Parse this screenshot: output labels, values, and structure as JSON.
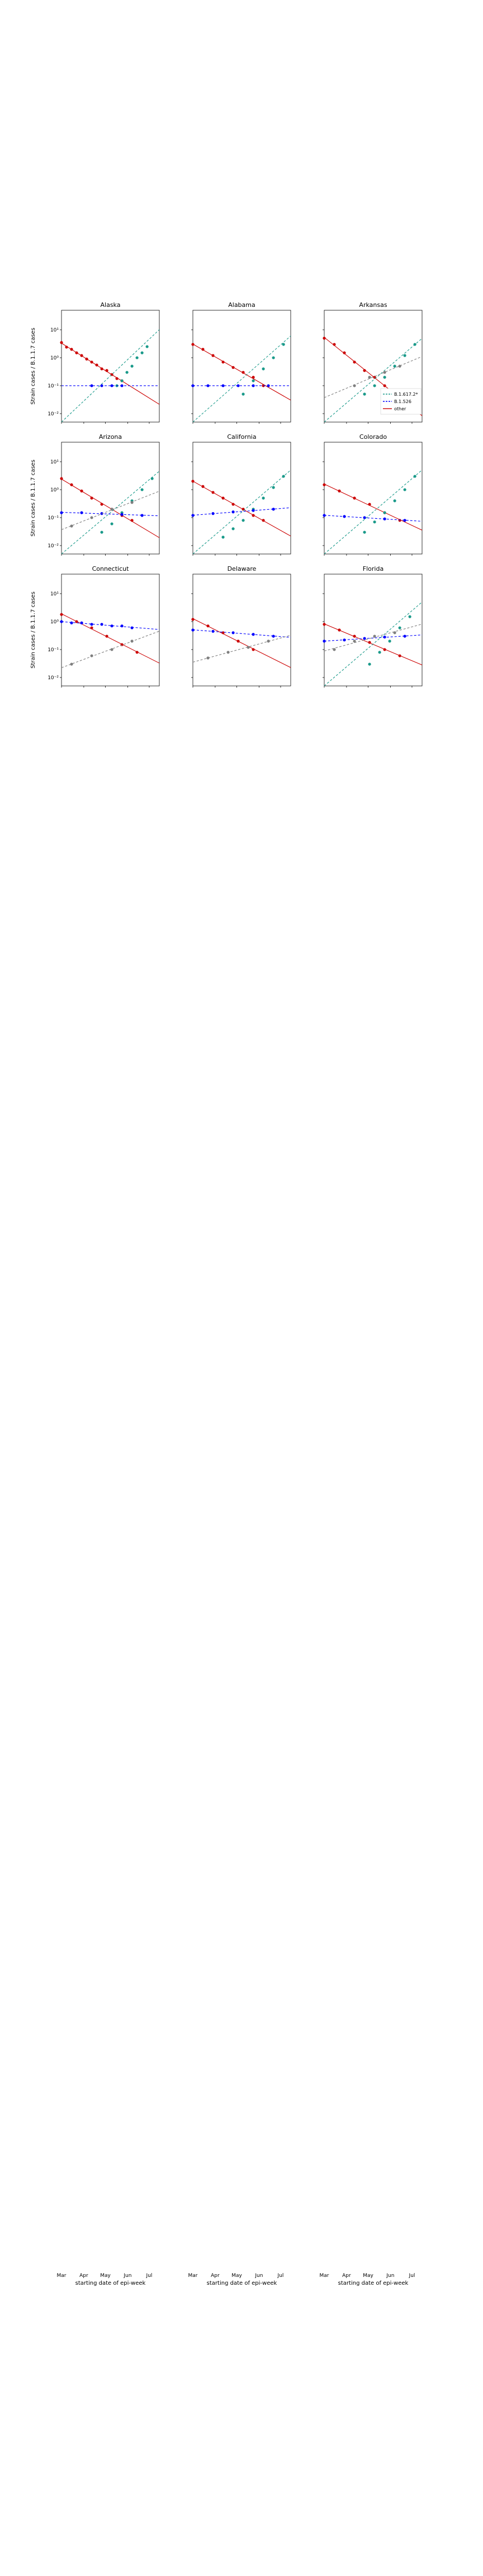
{
  "figure": {
    "ylabel": "Strain cases / B.1.1.7 cases",
    "xlabel": "starting date of epi-week",
    "x_tick_labels": [
      "Mar",
      "Apr",
      "May",
      "Jun",
      "Jul"
    ],
    "y_tick_labels": [
      "10¹",
      "10⁰",
      "10⁻¹",
      "10⁻²"
    ],
    "legend": {
      "location": "inside Arkansas panel, lower-right",
      "entries": [
        {
          "label": "B.1.617.2*",
          "color": "#1a9a8a",
          "style": "dashed"
        },
        {
          "label": "B.1.526",
          "color": "#0000ff",
          "style": "dashed"
        },
        {
          "label": "other",
          "color": "#cc0000",
          "style": "solid"
        }
      ]
    },
    "series_colors": {
      "B.1.617.2*": "#1a9a8a",
      "B.1.526": "#0000ff",
      "P.1": "#7f7f7f",
      "other": "#cc0000"
    }
  },
  "chart_data": [
    {
      "type": "scatter",
      "title": "Alaska",
      "log_y": true,
      "ylim": [
        0.005,
        50
      ],
      "grid": false,
      "x_range": [
        "2021-03-01",
        "2021-07-15"
      ],
      "series": [
        {
          "name": "other",
          "color": "#cc0000",
          "x": [
            "2021-03-01",
            "2021-03-08",
            "2021-03-15",
            "2021-03-22",
            "2021-03-29",
            "2021-04-05",
            "2021-04-12",
            "2021-04-19",
            "2021-04-26",
            "2021-05-03",
            "2021-05-10",
            "2021-05-17",
            "2021-05-24"
          ],
          "y": [
            3.5,
            2.4,
            2.0,
            1.5,
            1.2,
            0.9,
            0.7,
            0.55,
            0.4,
            0.35,
            0.25,
            0.18,
            0.15
          ]
        },
        {
          "name": "B.1.617.2*",
          "color": "#1a9a8a",
          "x": [
            "2021-05-17",
            "2021-05-24",
            "2021-05-31",
            "2021-06-07",
            "2021-06-14",
            "2021-06-21",
            "2021-06-28"
          ],
          "y": [
            0.1,
            0.15,
            0.3,
            0.5,
            1.0,
            1.5,
            2.5
          ]
        },
        {
          "name": "B.1.526",
          "color": "#0000ff",
          "x": [
            "2021-04-12",
            "2021-04-26",
            "2021-05-10",
            "2021-05-24"
          ],
          "y": [
            0.1,
            0.1,
            0.1,
            0.1
          ]
        }
      ]
    },
    {
      "type": "scatter",
      "title": "Alabama",
      "log_y": true,
      "ylim": [
        0.005,
        50
      ],
      "grid": false,
      "x_range": [
        "2021-03-01",
        "2021-07-15"
      ],
      "series": [
        {
          "name": "other",
          "color": "#cc0000",
          "x": [
            "2021-03-01",
            "2021-03-15",
            "2021-03-29",
            "2021-04-12",
            "2021-04-26",
            "2021-05-10",
            "2021-05-24",
            "2021-06-07"
          ],
          "y": [
            3.0,
            2.0,
            1.2,
            0.7,
            0.45,
            0.3,
            0.2,
            0.1
          ]
        },
        {
          "name": "B.1.617.2*",
          "color": "#1a9a8a",
          "x": [
            "2021-05-10",
            "2021-05-24",
            "2021-06-07",
            "2021-06-21",
            "2021-07-05"
          ],
          "y": [
            0.05,
            0.15,
            0.4,
            1.0,
            3.0
          ]
        },
        {
          "name": "B.1.526",
          "color": "#0000ff",
          "x": [
            "2021-03-01",
            "2021-03-22",
            "2021-04-12",
            "2021-05-03",
            "2021-05-24",
            "2021-06-14"
          ],
          "y": [
            0.1,
            0.1,
            0.1,
            0.1,
            0.1,
            0.1
          ]
        }
      ]
    },
    {
      "type": "scatter",
      "title": "Arkansas",
      "log_y": true,
      "ylim": [
        0.005,
        50
      ],
      "grid": false,
      "x_range": [
        "2021-03-01",
        "2021-07-15"
      ],
      "series": [
        {
          "name": "other",
          "color": "#cc0000",
          "x": [
            "2021-03-01",
            "2021-03-15",
            "2021-03-29",
            "2021-04-12",
            "2021-04-26",
            "2021-05-10",
            "2021-05-24"
          ],
          "y": [
            5.0,
            3.0,
            1.5,
            0.7,
            0.35,
            0.2,
            0.1
          ]
        },
        {
          "name": "B.1.617.2*",
          "color": "#1a9a8a",
          "x": [
            "2021-04-26",
            "2021-05-10",
            "2021-05-24",
            "2021-06-07",
            "2021-06-21",
            "2021-07-05"
          ],
          "y": [
            0.05,
            0.1,
            0.2,
            0.5,
            1.2,
            3.0
          ]
        },
        {
          "name": "P.1",
          "color": "#7f7f7f",
          "x": [
            "2021-04-12",
            "2021-05-03",
            "2021-05-24",
            "2021-06-14"
          ],
          "y": [
            0.1,
            0.2,
            0.3,
            0.5
          ]
        }
      ]
    },
    {
      "type": "scatter",
      "title": "Arizona",
      "log_y": true,
      "ylim": [
        0.005,
        50
      ],
      "grid": false,
      "x_range": [
        "2021-03-01",
        "2021-07-15"
      ],
      "series": [
        {
          "name": "other",
          "color": "#cc0000",
          "x": [
            "2021-03-01",
            "2021-03-15",
            "2021-03-29",
            "2021-04-12",
            "2021-04-26",
            "2021-05-10",
            "2021-05-24",
            "2021-06-07"
          ],
          "y": [
            2.5,
            1.5,
            0.9,
            0.5,
            0.3,
            0.2,
            0.12,
            0.08
          ]
        },
        {
          "name": "B.1.617.2*",
          "color": "#1a9a8a",
          "x": [
            "2021-04-26",
            "2021-05-10",
            "2021-05-24",
            "2021-06-07",
            "2021-06-21",
            "2021-07-05"
          ],
          "y": [
            0.03,
            0.06,
            0.15,
            0.4,
            1.0,
            2.5
          ]
        },
        {
          "name": "B.1.526",
          "color": "#0000ff",
          "x": [
            "2021-03-01",
            "2021-03-29",
            "2021-04-26",
            "2021-05-24",
            "2021-06-21"
          ],
          "y": [
            0.15,
            0.15,
            0.14,
            0.13,
            0.12
          ]
        },
        {
          "name": "P.1",
          "color": "#7f7f7f",
          "x": [
            "2021-03-15",
            "2021-04-12",
            "2021-05-10",
            "2021-06-07"
          ],
          "y": [
            0.05,
            0.1,
            0.2,
            0.35
          ]
        }
      ]
    },
    {
      "type": "scatter",
      "title": "California",
      "log_y": true,
      "ylim": [
        0.005,
        50
      ],
      "grid": false,
      "x_range": [
        "2021-03-01",
        "2021-07-15"
      ],
      "series": [
        {
          "name": "other",
          "color": "#cc0000",
          "x": [
            "2021-03-01",
            "2021-03-15",
            "2021-03-29",
            "2021-04-12",
            "2021-04-26",
            "2021-05-10",
            "2021-05-24",
            "2021-06-07"
          ],
          "y": [
            2.0,
            1.3,
            0.8,
            0.5,
            0.3,
            0.2,
            0.12,
            0.08
          ]
        },
        {
          "name": "B.1.617.2*",
          "color": "#1a9a8a",
          "x": [
            "2021-04-12",
            "2021-04-26",
            "2021-05-10",
            "2021-05-24",
            "2021-06-07",
            "2021-06-21",
            "2021-07-05"
          ],
          "y": [
            0.02,
            0.04,
            0.08,
            0.2,
            0.5,
            1.2,
            3.0
          ]
        },
        {
          "name": "B.1.526",
          "color": "#0000ff",
          "x": [
            "2021-03-01",
            "2021-03-29",
            "2021-04-26",
            "2021-05-24",
            "2021-06-21"
          ],
          "y": [
            0.12,
            0.14,
            0.16,
            0.18,
            0.2
          ]
        }
      ]
    },
    {
      "type": "scatter",
      "title": "Colorado",
      "log_y": true,
      "ylim": [
        0.005,
        50
      ],
      "grid": false,
      "x_range": [
        "2021-03-01",
        "2021-07-15"
      ],
      "series": [
        {
          "name": "other",
          "color": "#cc0000",
          "x": [
            "2021-03-01",
            "2021-03-22",
            "2021-04-12",
            "2021-05-03",
            "2021-05-24",
            "2021-06-14"
          ],
          "y": [
            1.5,
            0.9,
            0.5,
            0.3,
            0.15,
            0.08
          ]
        },
        {
          "name": "B.1.617.2*",
          "color": "#1a9a8a",
          "x": [
            "2021-04-26",
            "2021-05-10",
            "2021-05-24",
            "2021-06-07",
            "2021-06-21",
            "2021-07-05"
          ],
          "y": [
            0.03,
            0.07,
            0.15,
            0.4,
            1.0,
            3.0
          ]
        },
        {
          "name": "B.1.526",
          "color": "#0000ff",
          "x": [
            "2021-03-01",
            "2021-03-29",
            "2021-04-26",
            "2021-05-24",
            "2021-06-21"
          ],
          "y": [
            0.12,
            0.11,
            0.1,
            0.09,
            0.08
          ]
        }
      ]
    },
    {
      "type": "scatter",
      "title": "Connecticut",
      "log_y": true,
      "ylim": [
        0.005,
        50
      ],
      "grid": false,
      "x_range": [
        "2021-03-01",
        "2021-07-15"
      ],
      "series": [
        {
          "name": "other",
          "color": "#cc0000",
          "x": [
            "2021-03-01",
            "2021-03-22",
            "2021-04-12",
            "2021-05-03",
            "2021-05-24",
            "2021-06-14"
          ],
          "y": [
            1.8,
            1.0,
            0.6,
            0.3,
            0.15,
            0.08
          ]
        },
        {
          "name": "B.1.526",
          "color": "#0000ff",
          "x": [
            "2021-03-01",
            "2021-03-15",
            "2021-03-29",
            "2021-04-12",
            "2021-04-26",
            "2021-05-10",
            "2021-05-24",
            "2021-06-07"
          ],
          "y": [
            1.0,
            0.9,
            0.9,
            0.8,
            0.8,
            0.7,
            0.7,
            0.6
          ]
        },
        {
          "name": "P.1",
          "color": "#7f7f7f",
          "x": [
            "2021-03-15",
            "2021-04-12",
            "2021-05-10",
            "2021-06-07"
          ],
          "y": [
            0.03,
            0.06,
            0.1,
            0.2
          ]
        }
      ]
    },
    {
      "type": "scatter",
      "title": "Delaware",
      "log_y": true,
      "ylim": [
        0.005,
        50
      ],
      "grid": false,
      "x_range": [
        "2021-03-01",
        "2021-07-15"
      ],
      "series": [
        {
          "name": "other",
          "color": "#cc0000",
          "x": [
            "2021-03-01",
            "2021-03-22",
            "2021-04-12",
            "2021-05-03",
            "2021-05-24"
          ],
          "y": [
            1.2,
            0.7,
            0.4,
            0.2,
            0.1
          ]
        },
        {
          "name": "B.1.526",
          "color": "#0000ff",
          "x": [
            "2021-03-01",
            "2021-03-29",
            "2021-04-26",
            "2021-05-24",
            "2021-06-21"
          ],
          "y": [
            0.5,
            0.45,
            0.4,
            0.35,
            0.3
          ]
        },
        {
          "name": "P.1",
          "color": "#7f7f7f",
          "x": [
            "2021-03-22",
            "2021-04-19",
            "2021-05-17",
            "2021-06-14"
          ],
          "y": [
            0.05,
            0.08,
            0.12,
            0.2
          ]
        }
      ]
    },
    {
      "type": "scatter",
      "title": "Florida",
      "log_y": true,
      "ylim": [
        0.005,
        50
      ],
      "grid": false,
      "x_range": [
        "2021-03-01",
        "2021-07-15"
      ],
      "series": [
        {
          "name": "other",
          "color": "#cc0000",
          "x": [
            "2021-03-01",
            "2021-03-22",
            "2021-04-12",
            "2021-05-03",
            "2021-05-24",
            "2021-06-14"
          ],
          "y": [
            0.8,
            0.5,
            0.3,
            0.18,
            0.1,
            0.06
          ]
        },
        {
          "name": "B.1.617.2*",
          "color": "#1a9a8a",
          "x": [
            "2021-05-03",
            "2021-05-17",
            "2021-05-31",
            "2021-06-14",
            "2021-06-28"
          ],
          "y": [
            0.03,
            0.08,
            0.2,
            0.6,
            1.5
          ]
        },
        {
          "name": "B.1.526",
          "color": "#0000ff",
          "x": [
            "2021-03-01",
            "2021-03-29",
            "2021-04-26",
            "2021-05-24",
            "2021-06-21"
          ],
          "y": [
            0.2,
            0.22,
            0.25,
            0.28,
            0.3
          ]
        },
        {
          "name": "P.1",
          "color": "#7f7f7f",
          "x": [
            "2021-03-15",
            "2021-04-12",
            "2021-05-10",
            "2021-06-07"
          ],
          "y": [
            0.1,
            0.2,
            0.3,
            0.4
          ]
        }
      ]
    }
  ]
}
